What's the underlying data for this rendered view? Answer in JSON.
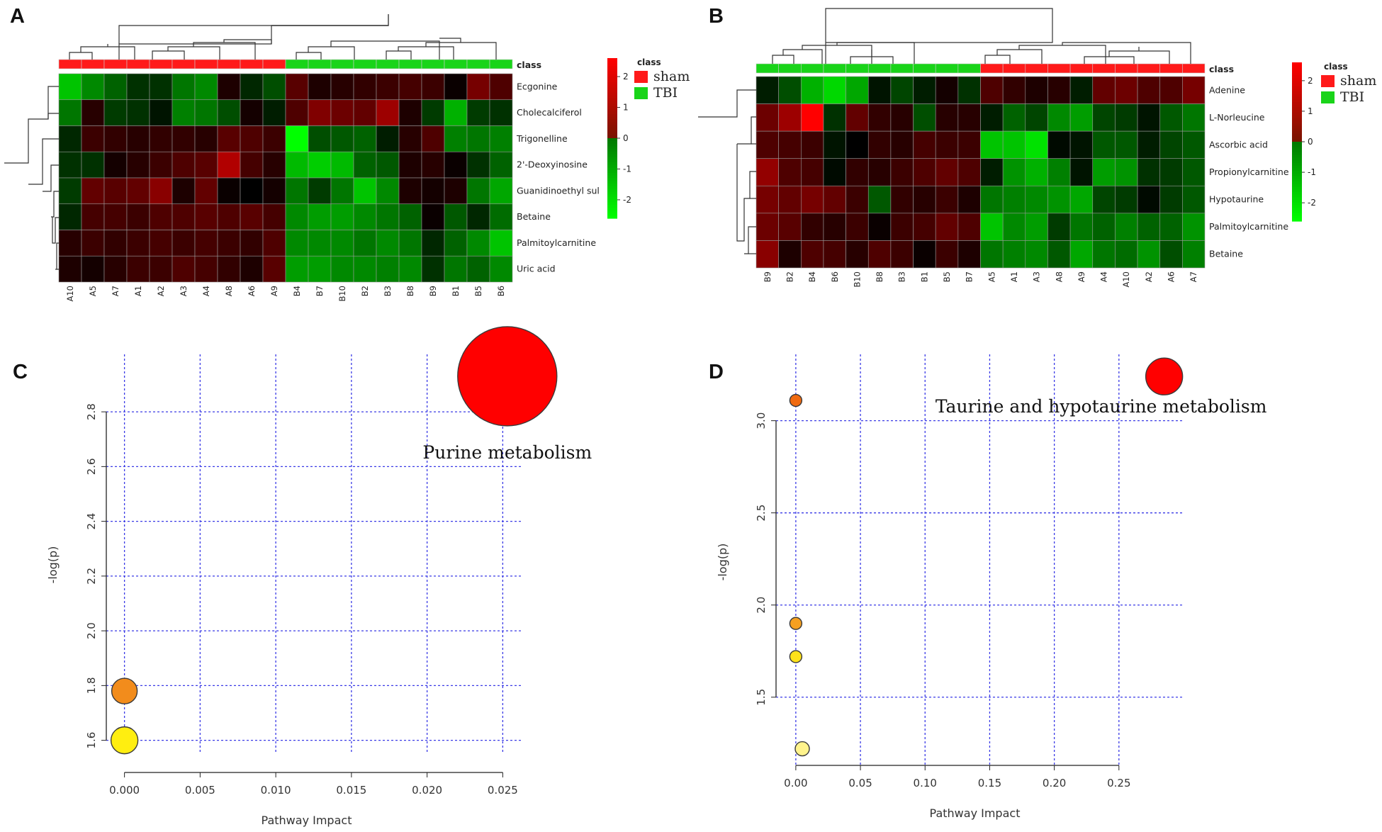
{
  "panels": [
    "A",
    "B",
    "C",
    "D"
  ],
  "chart_data": [
    {
      "type": "heatmap",
      "panel": "A",
      "class_row_label": "class",
      "columns": [
        "A10",
        "A5",
        "A7",
        "A1",
        "A2",
        "A3",
        "A4",
        "A8",
        "A6",
        "A9",
        "B4",
        "B7",
        "B10",
        "B2",
        "B3",
        "B8",
        "B9",
        "B1",
        "B5",
        "B6"
      ],
      "column_classes": [
        "sham",
        "sham",
        "sham",
        "sham",
        "sham",
        "sham",
        "sham",
        "sham",
        "sham",
        "sham",
        "TBI",
        "TBI",
        "TBI",
        "TBI",
        "TBI",
        "TBI",
        "TBI",
        "TBI",
        "TBI",
        "TBI"
      ],
      "rows": [
        "Ecgonine",
        "Cholecalciferol",
        "Trigonelline",
        "2'-Deoxyinosine",
        "Guanidinoethyl sul",
        "Betaine",
        "Palmitoylcarnitine",
        "Uric acid"
      ],
      "values": [
        [
          -2.0,
          -1.4,
          -1.0,
          -0.5,
          -0.5,
          -1.2,
          -1.4,
          0.3,
          -0.4,
          -0.8,
          0.9,
          0.3,
          0.4,
          0.5,
          0.6,
          0.7,
          0.6,
          0.1,
          1.2,
          0.8
        ],
        [
          -1.2,
          0.4,
          -0.6,
          -0.5,
          -0.2,
          -1.3,
          -1.2,
          -0.8,
          0.2,
          -0.3,
          0.8,
          1.3,
          1.1,
          1.0,
          1.6,
          0.3,
          -0.6,
          -1.8,
          -0.6,
          -0.5
        ],
        [
          -0.4,
          0.6,
          0.5,
          0.4,
          0.5,
          0.5,
          0.4,
          0.9,
          0.8,
          0.6,
          -2.6,
          -0.8,
          -0.9,
          -1.0,
          -0.3,
          0.4,
          0.8,
          -1.3,
          -1.2,
          -1.3
        ],
        [
          -0.5,
          -0.5,
          0.2,
          0.4,
          0.6,
          0.8,
          0.9,
          1.8,
          0.7,
          0.4,
          -1.9,
          -2.1,
          -1.9,
          -1.0,
          -0.9,
          0.3,
          0.4,
          0.1,
          -0.5,
          -1.0
        ],
        [
          -0.6,
          1.0,
          0.9,
          1.0,
          1.4,
          0.3,
          1.0,
          0.1,
          0.0,
          0.2,
          -1.2,
          -0.6,
          -1.2,
          -2.0,
          -1.4,
          0.3,
          0.2,
          0.3,
          -1.2,
          -1.7
        ],
        [
          -0.4,
          0.7,
          0.7,
          0.6,
          0.8,
          0.8,
          0.9,
          0.8,
          0.9,
          0.7,
          -1.4,
          -1.6,
          -1.6,
          -1.4,
          -1.2,
          -1.0,
          0.1,
          -0.9,
          -0.4,
          -1.1
        ],
        [
          0.4,
          0.6,
          0.5,
          0.6,
          0.7,
          0.6,
          0.7,
          0.6,
          0.5,
          0.8,
          -1.4,
          -1.4,
          -1.4,
          -1.2,
          -1.4,
          -1.2,
          -0.4,
          -1.0,
          -1.4,
          -2.0
        ],
        [
          0.3,
          0.2,
          0.4,
          0.6,
          0.6,
          0.8,
          0.7,
          0.5,
          0.3,
          0.9,
          -1.6,
          -1.6,
          -1.4,
          -1.4,
          -1.3,
          -1.4,
          -0.5,
          -1.2,
          -1.0,
          -1.4
        ]
      ],
      "legend": {
        "title": "class",
        "entries": [
          "sham",
          "TBI"
        ]
      },
      "colorbar": {
        "title": "",
        "ticks": [
          "2",
          "1",
          "0",
          "-1",
          "-2"
        ],
        "range": [
          -2.6,
          2.6
        ]
      }
    },
    {
      "type": "heatmap",
      "panel": "B",
      "class_row_label": "class",
      "columns": [
        "B9",
        "B2",
        "B4",
        "B6",
        "B10",
        "B8",
        "B3",
        "B1",
        "B5",
        "B7",
        "A5",
        "A1",
        "A3",
        "A8",
        "A9",
        "A4",
        "A10",
        "A2",
        "A6",
        "A7"
      ],
      "column_classes": [
        "TBI",
        "TBI",
        "TBI",
        "TBI",
        "TBI",
        "TBI",
        "TBI",
        "TBI",
        "TBI",
        "TBI",
        "sham",
        "sham",
        "sham",
        "sham",
        "sham",
        "sham",
        "sham",
        "sham",
        "sham",
        "sham"
      ],
      "rows": [
        "Adenine",
        "L-Norleucine",
        "Ascorbic acid",
        "Propionylcarnitine",
        "Hypotaurine",
        "Palmitoylcarnitine",
        "Betaine"
      ],
      "values": [
        [
          -0.3,
          -0.8,
          -1.8,
          -2.2,
          -1.7,
          -0.2,
          -0.7,
          -0.3,
          0.2,
          -0.5,
          0.8,
          0.5,
          0.3,
          0.4,
          -0.3,
          1.0,
          1.1,
          0.8,
          0.8,
          1.2
        ],
        [
          1.1,
          1.6,
          2.8,
          -0.5,
          1.0,
          0.5,
          0.4,
          -0.8,
          0.4,
          0.4,
          -0.3,
          -1.0,
          -0.7,
          -1.4,
          -1.6,
          -0.7,
          -0.6,
          -0.2,
          -0.9,
          -1.2
        ],
        [
          0.8,
          0.7,
          0.6,
          -0.2,
          0.0,
          0.5,
          0.4,
          0.7,
          0.6,
          0.6,
          -2.0,
          -2.0,
          -2.3,
          -0.1,
          -0.2,
          -0.9,
          -0.9,
          -0.3,
          -0.7,
          -0.9
        ],
        [
          1.5,
          0.8,
          0.7,
          -0.1,
          0.5,
          0.4,
          0.6,
          0.8,
          1.0,
          0.8,
          -0.3,
          -1.5,
          -1.8,
          -1.3,
          -0.2,
          -1.6,
          -1.5,
          -0.5,
          -0.6,
          -0.9
        ],
        [
          1.2,
          1.0,
          1.2,
          1.0,
          0.6,
          -0.9,
          0.5,
          0.4,
          0.6,
          0.3,
          -1.2,
          -1.3,
          -1.4,
          -1.5,
          -1.7,
          -0.7,
          -0.6,
          -0.1,
          -0.6,
          -0.9
        ],
        [
          1.1,
          0.9,
          0.5,
          0.4,
          0.6,
          0.1,
          0.6,
          0.7,
          1.0,
          0.8,
          -2.0,
          -1.4,
          -1.6,
          -0.6,
          -1.2,
          -1.0,
          -1.3,
          -1.0,
          -1.0,
          -1.5
        ],
        [
          1.4,
          0.3,
          0.8,
          0.7,
          0.4,
          0.8,
          0.6,
          0.1,
          0.6,
          0.3,
          -1.2,
          -1.3,
          -1.4,
          -0.9,
          -1.7,
          -1.2,
          -1.1,
          -1.5,
          -0.8,
          -1.3
        ]
      ],
      "legend": {
        "title": "class",
        "entries": [
          "sham",
          "TBI"
        ]
      },
      "colorbar": {
        "title": "",
        "ticks": [
          "2",
          "1",
          "0",
          "-1",
          "-2"
        ],
        "range": [
          -2.6,
          2.6
        ]
      }
    },
    {
      "type": "scatter",
      "panel": "C",
      "title": "",
      "xlabel": "Pathway Impact",
      "ylabel": "-log(p)",
      "xlim": [
        -0.0012,
        0.0262
      ],
      "ylim": [
        1.555,
        3.01
      ],
      "xticks": [
        "0.000",
        "0.005",
        "0.010",
        "0.015",
        "0.020",
        "0.025"
      ],
      "xtick_values": [
        0,
        0.005,
        0.01,
        0.015,
        0.02,
        0.025
      ],
      "yticks": [
        "1.6",
        "1.8",
        "2.0",
        "2.2",
        "2.4",
        "2.6",
        "2.8"
      ],
      "ytick_values": [
        1.6,
        1.8,
        2.0,
        2.2,
        2.4,
        2.6,
        2.8
      ],
      "grid": true,
      "points": [
        {
          "x": 0.0253,
          "y": 2.93,
          "size": 7.0,
          "color": "#ff0000",
          "label": "Purine metabolism"
        },
        {
          "x": 0.0,
          "y": 1.78,
          "size": 1.8,
          "color": "#f28c1c",
          "label": ""
        },
        {
          "x": 0.0,
          "y": 1.6,
          "size": 1.9,
          "color": "#ffee10",
          "label": ""
        }
      ]
    },
    {
      "type": "scatter",
      "panel": "D",
      "title": "",
      "xlabel": "Pathway Impact",
      "ylabel": "-log(p)",
      "xlim": [
        -0.012,
        0.3
      ],
      "ylim": [
        1.13,
        3.36
      ],
      "xticks": [
        "0.00",
        "0.05",
        "0.10",
        "0.15",
        "0.20",
        "0.25"
      ],
      "xtick_values": [
        0,
        0.05,
        0.1,
        0.15,
        0.2,
        0.25
      ],
      "yticks": [
        "1.5",
        "2.0",
        "2.5",
        "3.0"
      ],
      "ytick_values": [
        1.5,
        2.0,
        2.5,
        3.0
      ],
      "grid": true,
      "points": [
        {
          "x": 0.285,
          "y": 3.24,
          "size": 2.6,
          "color": "#ff0000",
          "label": "Taurine and hypotaurine metabolism"
        },
        {
          "x": 0.0,
          "y": 3.11,
          "size": 0.85,
          "color": "#f06a10",
          "label": ""
        },
        {
          "x": 0.0,
          "y": 1.9,
          "size": 0.85,
          "color": "#f5a020",
          "label": ""
        },
        {
          "x": 0.0,
          "y": 1.72,
          "size": 0.85,
          "color": "#ffe21a",
          "label": ""
        },
        {
          "x": 0.005,
          "y": 1.22,
          "size": 1.0,
          "color": "#fff38c",
          "label": ""
        }
      ]
    }
  ]
}
